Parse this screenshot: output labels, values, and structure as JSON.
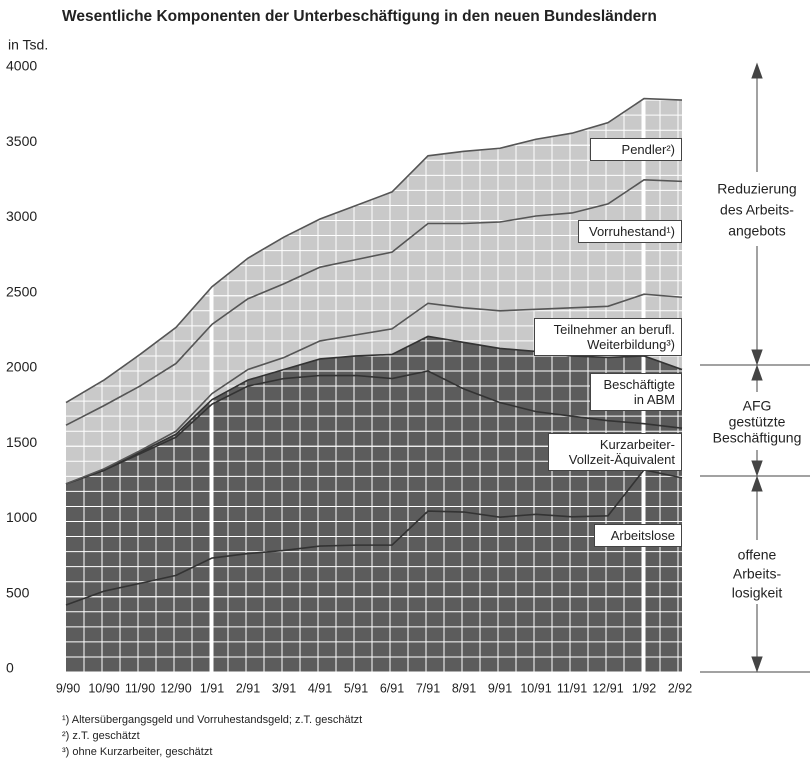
{
  "chart_data": {
    "type": "stacked-area",
    "title": "Wesentliche Komponenten der Unterbeschäftigung in den neuen Bundesländern",
    "y_label": "in Tsd.",
    "categories": [
      "9/90",
      "10/90",
      "11/90",
      "12/90",
      "1/91",
      "2/91",
      "3/91",
      "4/91",
      "5/91",
      "6/91",
      "7/91",
      "8/91",
      "9/91",
      "10/91",
      "11/91",
      "12/91",
      "1/92",
      "2/92"
    ],
    "ylim": [
      0,
      4000
    ],
    "yticks": [
      0,
      500,
      1000,
      1500,
      2000,
      2500,
      3000,
      3500,
      4000
    ],
    "grid": true,
    "series": [
      {
        "name": "Arbeitslose",
        "color": "#5c5c5c",
        "values": [
          445,
          537,
          589,
          642,
          757,
          787,
          808,
          837,
          843,
          843,
          1069,
          1063,
          1029,
          1048,
          1031,
          1038,
          1343,
          1290
        ]
      },
      {
        "name": "Kurzarbeiter-Vollzeit-Äquivalent",
        "color": "#5c5c5c",
        "values": [
          805,
          803,
          861,
          918,
          1023,
          1113,
          1142,
          1133,
          1127,
          1107,
          931,
          817,
          761,
          682,
          669,
          632,
          307,
          330
        ]
      },
      {
        "name": "Beschäftigte in ABM",
        "color": "#5c5c5c",
        "values": [
          0,
          0,
          10,
          20,
          30,
          40,
          60,
          110,
          130,
          160,
          230,
          310,
          360,
          400,
          400,
          420,
          450,
          390
        ]
      },
      {
        "name": "Teilnehmer an berufl. Weiterbildung³)",
        "color": "#c9c9c9",
        "values": [
          0,
          10,
          10,
          20,
          40,
          70,
          80,
          120,
          140,
          170,
          220,
          230,
          250,
          280,
          320,
          340,
          410,
          480
        ]
      },
      {
        "name": "Vorruhestand¹)",
        "color": "#c9c9c9",
        "values": [
          390,
          420,
          430,
          450,
          460,
          470,
          490,
          490,
          500,
          510,
          530,
          560,
          590,
          620,
          630,
          680,
          760,
          770
        ]
      },
      {
        "name": "Pendler²)",
        "color": "#c9c9c9",
        "values": [
          150,
          170,
          210,
          240,
          250,
          270,
          310,
          320,
          360,
          400,
          450,
          480,
          490,
          510,
          530,
          540,
          540,
          540
        ]
      }
    ],
    "annotations": [
      {
        "lines": [
          "Reduzierung",
          "des Arbeits-",
          "angebots"
        ]
      },
      {
        "lines": [
          "AFG",
          "gestützte",
          "Beschäftigung"
        ]
      },
      {
        "lines": [
          "offene",
          "Arbeits-",
          "losigkeit"
        ]
      }
    ],
    "footnotes": [
      "¹) Altersübergangsgeld und Vorruhestandsgeld; z.T. geschätzt",
      "²) z.T. geschätzt",
      "³) ohne Kurzarbeiter, geschätzt"
    ]
  }
}
